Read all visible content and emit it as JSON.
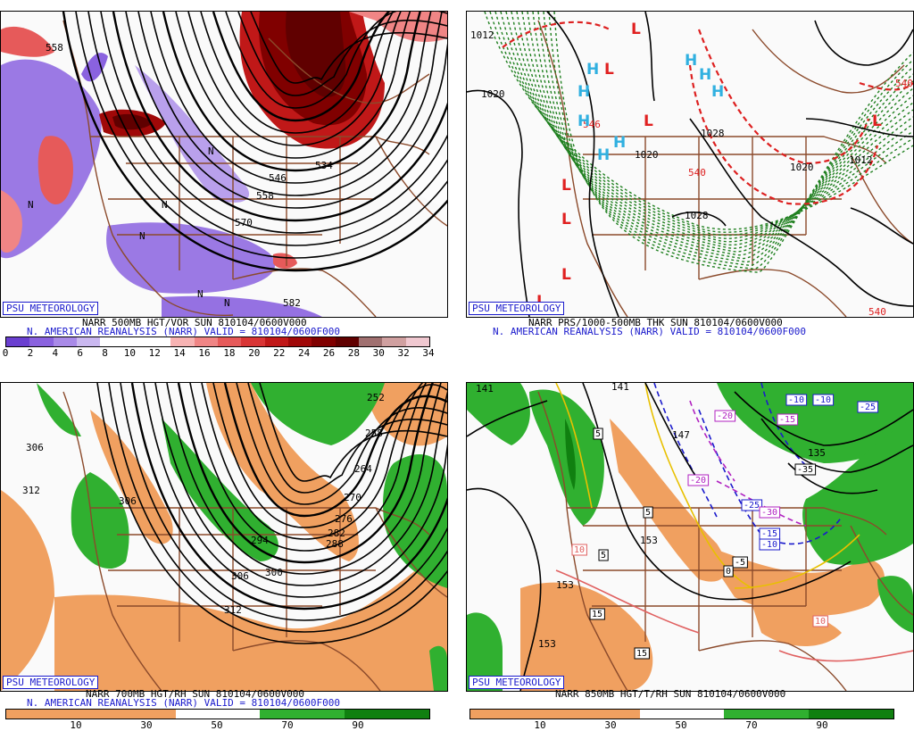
{
  "source_badge": "PSU METEOROLOGY",
  "panels": {
    "top_left": {
      "caption1": "NARR 500MB HGT/VOR SUN 810104/0600V000",
      "caption2": "N. AMERICAN REANALYSIS (NARR) VALID = 810104/0600F000",
      "colorbar_ticks": [
        "0",
        "2",
        "4",
        "6",
        "8",
        "10",
        "12",
        "14",
        "16",
        "18",
        "20",
        "22",
        "24",
        "26",
        "28",
        "30",
        "32",
        "34"
      ],
      "colorbar_colors": [
        "#6a3fd0",
        "#8a62df",
        "#a98ae8",
        "#cab8f0",
        "#ffffff",
        "#ffffff",
        "#ffffff",
        "#f7b3b3",
        "#f08585",
        "#e65a5a",
        "#d93535",
        "#c01818",
        "#a00808",
        "#800000",
        "#600000",
        "#a07070",
        "#d0a0a0",
        "#f0c8d0"
      ],
      "contour_labels": [
        "534",
        "546",
        "558",
        "570",
        "582",
        "558"
      ],
      "symbol": "N"
    },
    "top_right": {
      "caption1": "NARR PRS/1000-500MB THK SUN 810104/0600V000",
      "caption2": "N. AMERICAN REANALYSIS (NARR) VALID = 810104/0600F000",
      "contour_labels": [
        "1012",
        "1020",
        "1020",
        "1028",
        "1028",
        "1020",
        "1012",
        "546",
        "540",
        "540",
        "540"
      ],
      "high": "H",
      "low": "L"
    },
    "bottom_left": {
      "caption1": "NARR 700MB HGT/RH SUN 810104/0600V000",
      "caption2": "N. AMERICAN REANALYSIS (NARR) VALID = 810104/0600F000",
      "colorbar_ticks": [
        "10",
        "30",
        "50",
        "70",
        "90"
      ],
      "contour_labels": [
        "306",
        "312",
        "306",
        "312",
        "300",
        "306",
        "294",
        "288",
        "282",
        "276",
        "270",
        "264",
        "258",
        "252"
      ]
    },
    "bottom_right": {
      "caption1": "NARR 850MB HGT/T/RH SUN 810104/0600V000",
      "colorbar_ticks": [
        "10",
        "30",
        "50",
        "70",
        "90"
      ],
      "contour_labels": [
        "141",
        "147",
        "153",
        "153",
        "153",
        "141",
        "135"
      ],
      "temp_labels": [
        "-20",
        "-10",
        "-10",
        "-15",
        "-25",
        "-25",
        "-30",
        "-35",
        "-15",
        "-10",
        "-5",
        "0",
        "5",
        "5",
        "5",
        "10",
        "10",
        "15",
        "15",
        "-20"
      ]
    }
  },
  "colors": {
    "dry": "#f0a060",
    "moist": "#30b030",
    "moist_dark": "#108010",
    "border": "#8b4a2b",
    "contour": "#000000",
    "thickness_red": "#dd2020",
    "thickness_green": "#208020",
    "high_blue": "#30b0e0",
    "low_red": "#e02020"
  }
}
